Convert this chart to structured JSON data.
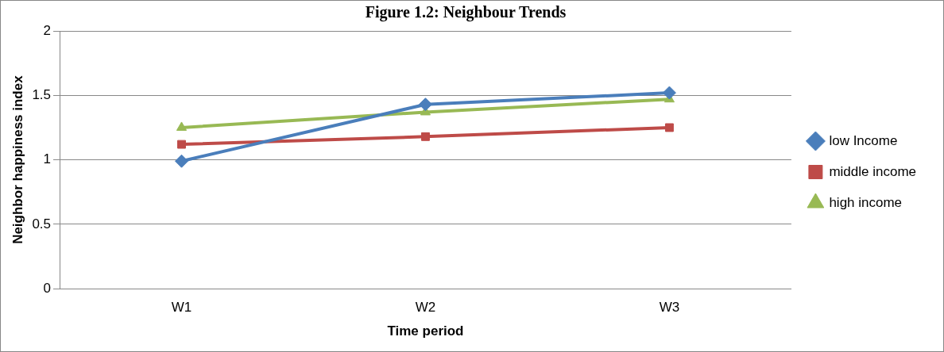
{
  "chart_data": {
    "type": "line",
    "title": "Figure 1.2: Neighbour Trends",
    "xlabel": "Time period",
    "ylabel": "Neighbor happiness index",
    "categories": [
      "W1",
      "W2",
      "W3"
    ],
    "series": [
      {
        "name": "low Income",
        "color": "#4a7ebb",
        "marker": "diamond",
        "values": [
          0.99,
          1.43,
          1.52
        ]
      },
      {
        "name": "middle income",
        "color": "#be4b48",
        "marker": "square",
        "values": [
          1.12,
          1.18,
          1.25
        ]
      },
      {
        "name": "high income",
        "color": "#98b954",
        "marker": "triangle",
        "values": [
          1.25,
          1.37,
          1.47
        ]
      }
    ],
    "ylim": [
      0,
      2
    ],
    "yticks": [
      0,
      0.5,
      1,
      1.5,
      2
    ],
    "grid": "y",
    "legend": "right",
    "line_style": "solid"
  }
}
